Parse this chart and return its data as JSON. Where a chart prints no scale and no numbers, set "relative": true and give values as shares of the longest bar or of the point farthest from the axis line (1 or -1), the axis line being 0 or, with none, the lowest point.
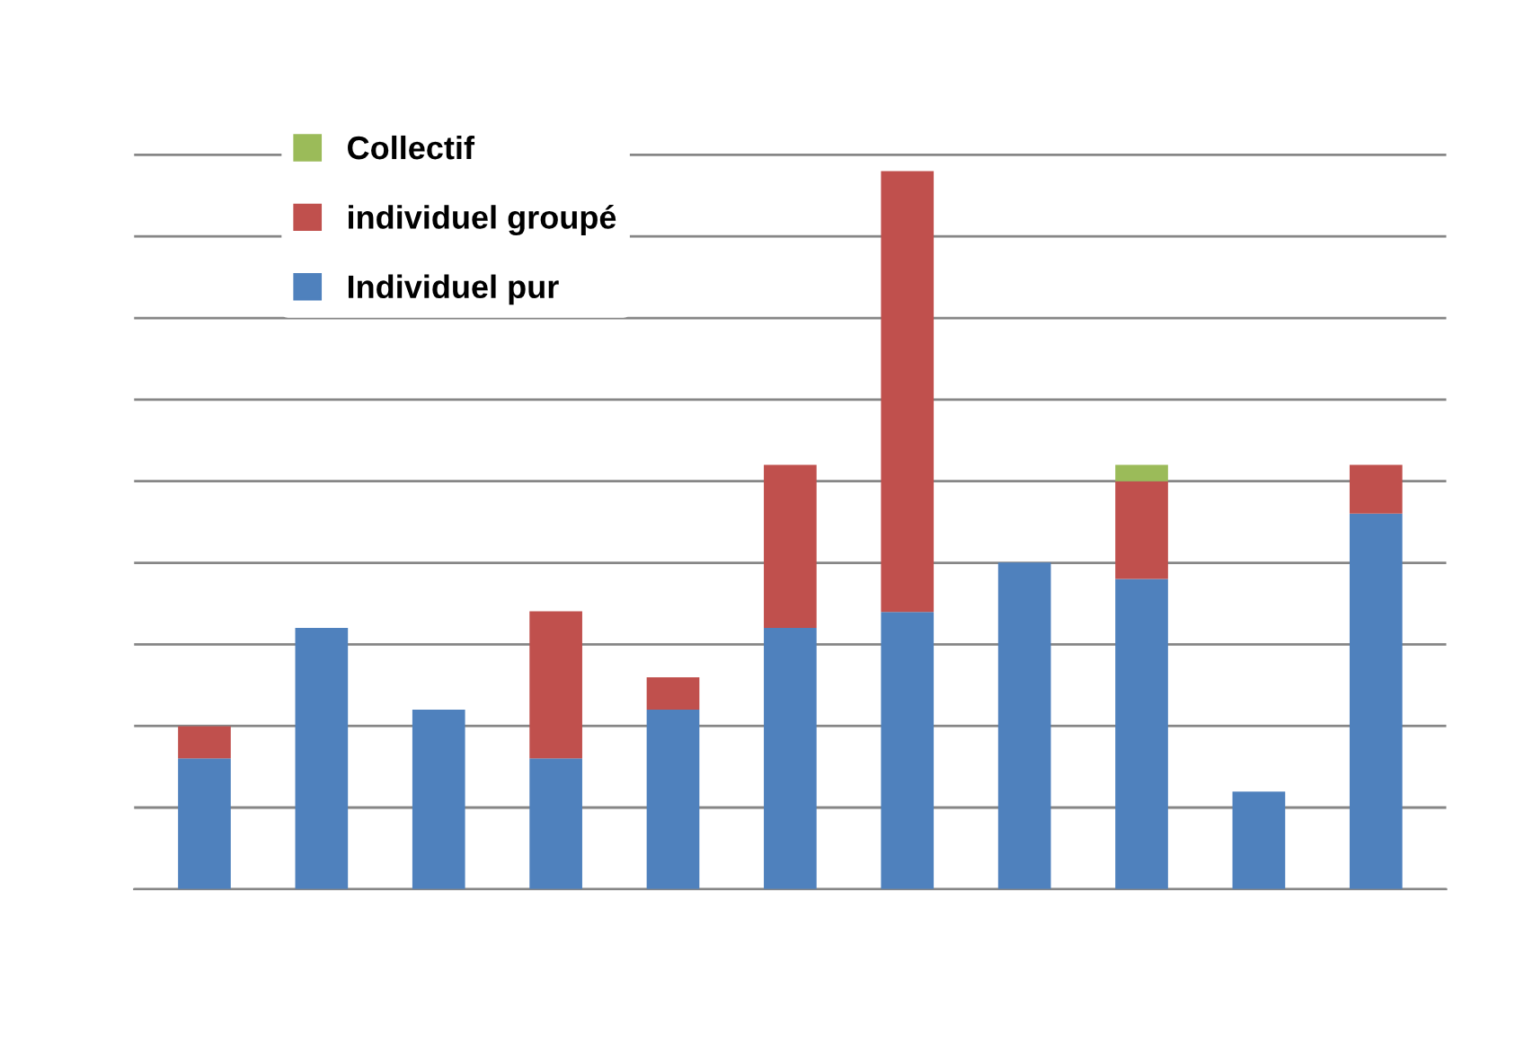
{
  "chart_data": {
    "type": "bar",
    "stacked": true,
    "relative": true,
    "categories": [
      null,
      null,
      null,
      null,
      null,
      null,
      null,
      null,
      null,
      null,
      null
    ],
    "series": [
      {
        "name": "Individuel pur",
        "color": "#4f81bd",
        "values": [
          0.182,
          0.364,
          0.25,
          0.182,
          0.25,
          0.364,
          0.386,
          0.455,
          0.432,
          0.136,
          0.523
        ]
      },
      {
        "name": "individuel groupé",
        "color": "#c0504d",
        "values": [
          0.045,
          null,
          null,
          0.205,
          0.045,
          0.227,
          0.614,
          null,
          0.136,
          null,
          0.068
        ]
      },
      {
        "name": "Collectif",
        "color": "#9bbb59",
        "values": [
          null,
          null,
          null,
          null,
          null,
          null,
          null,
          null,
          0.023,
          null,
          null
        ]
      }
    ],
    "grid": "y",
    "legend": "top left"
  }
}
